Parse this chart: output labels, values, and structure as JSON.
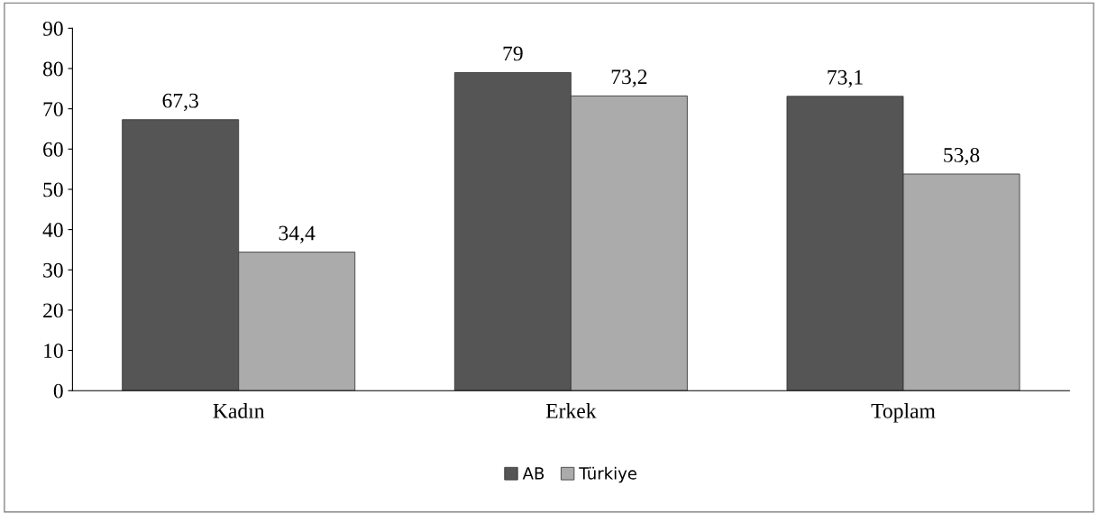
{
  "chart_data": {
    "type": "bar",
    "categories": [
      "Kadın",
      "Erkek",
      "Toplam"
    ],
    "series": [
      {
        "name": "AB",
        "color": "#555555",
        "values": [
          67.3,
          79,
          73.1
        ],
        "value_labels": [
          "67,3",
          "79",
          "73,1"
        ]
      },
      {
        "name": "Türkiye",
        "color": "#ababab",
        "values": [
          34.4,
          73.2,
          53.8
        ],
        "value_labels": [
          "34,4",
          "73,2",
          "53,8"
        ]
      }
    ],
    "ylim": [
      0,
      90
    ],
    "yticks": [
      0,
      10,
      20,
      30,
      40,
      50,
      60,
      70,
      80,
      90
    ],
    "grid": false,
    "legend": "bottom"
  }
}
